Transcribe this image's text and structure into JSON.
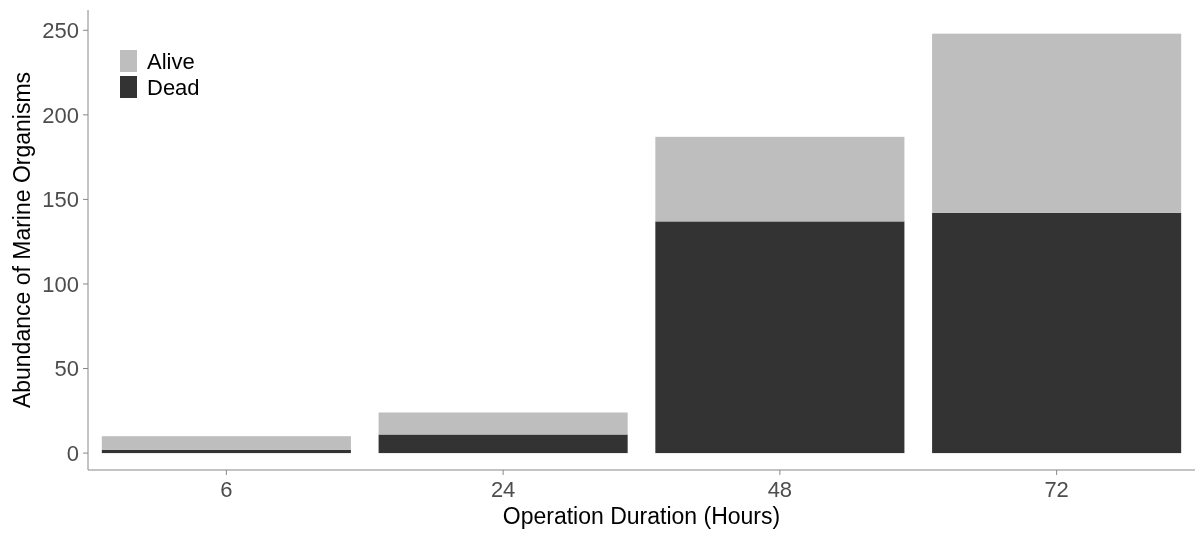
{
  "chart_data": {
    "type": "bar",
    "xlabel": "Operation Duration (Hours)",
    "ylabel": "Abundance of Marine Organisms",
    "categories": [
      "6",
      "24",
      "48",
      "72"
    ],
    "stacked": true,
    "series": [
      {
        "name": "Dead",
        "color": "#333333",
        "values": [
          2,
          11,
          137,
          142
        ]
      },
      {
        "name": "Alive",
        "color": "#bebebe",
        "values": [
          8,
          13,
          50,
          106
        ]
      }
    ],
    "ylim": [
      -10,
      262
    ],
    "yticks": [
      0,
      50,
      100,
      150,
      200,
      250
    ],
    "grid": false,
    "legend": "top left"
  }
}
